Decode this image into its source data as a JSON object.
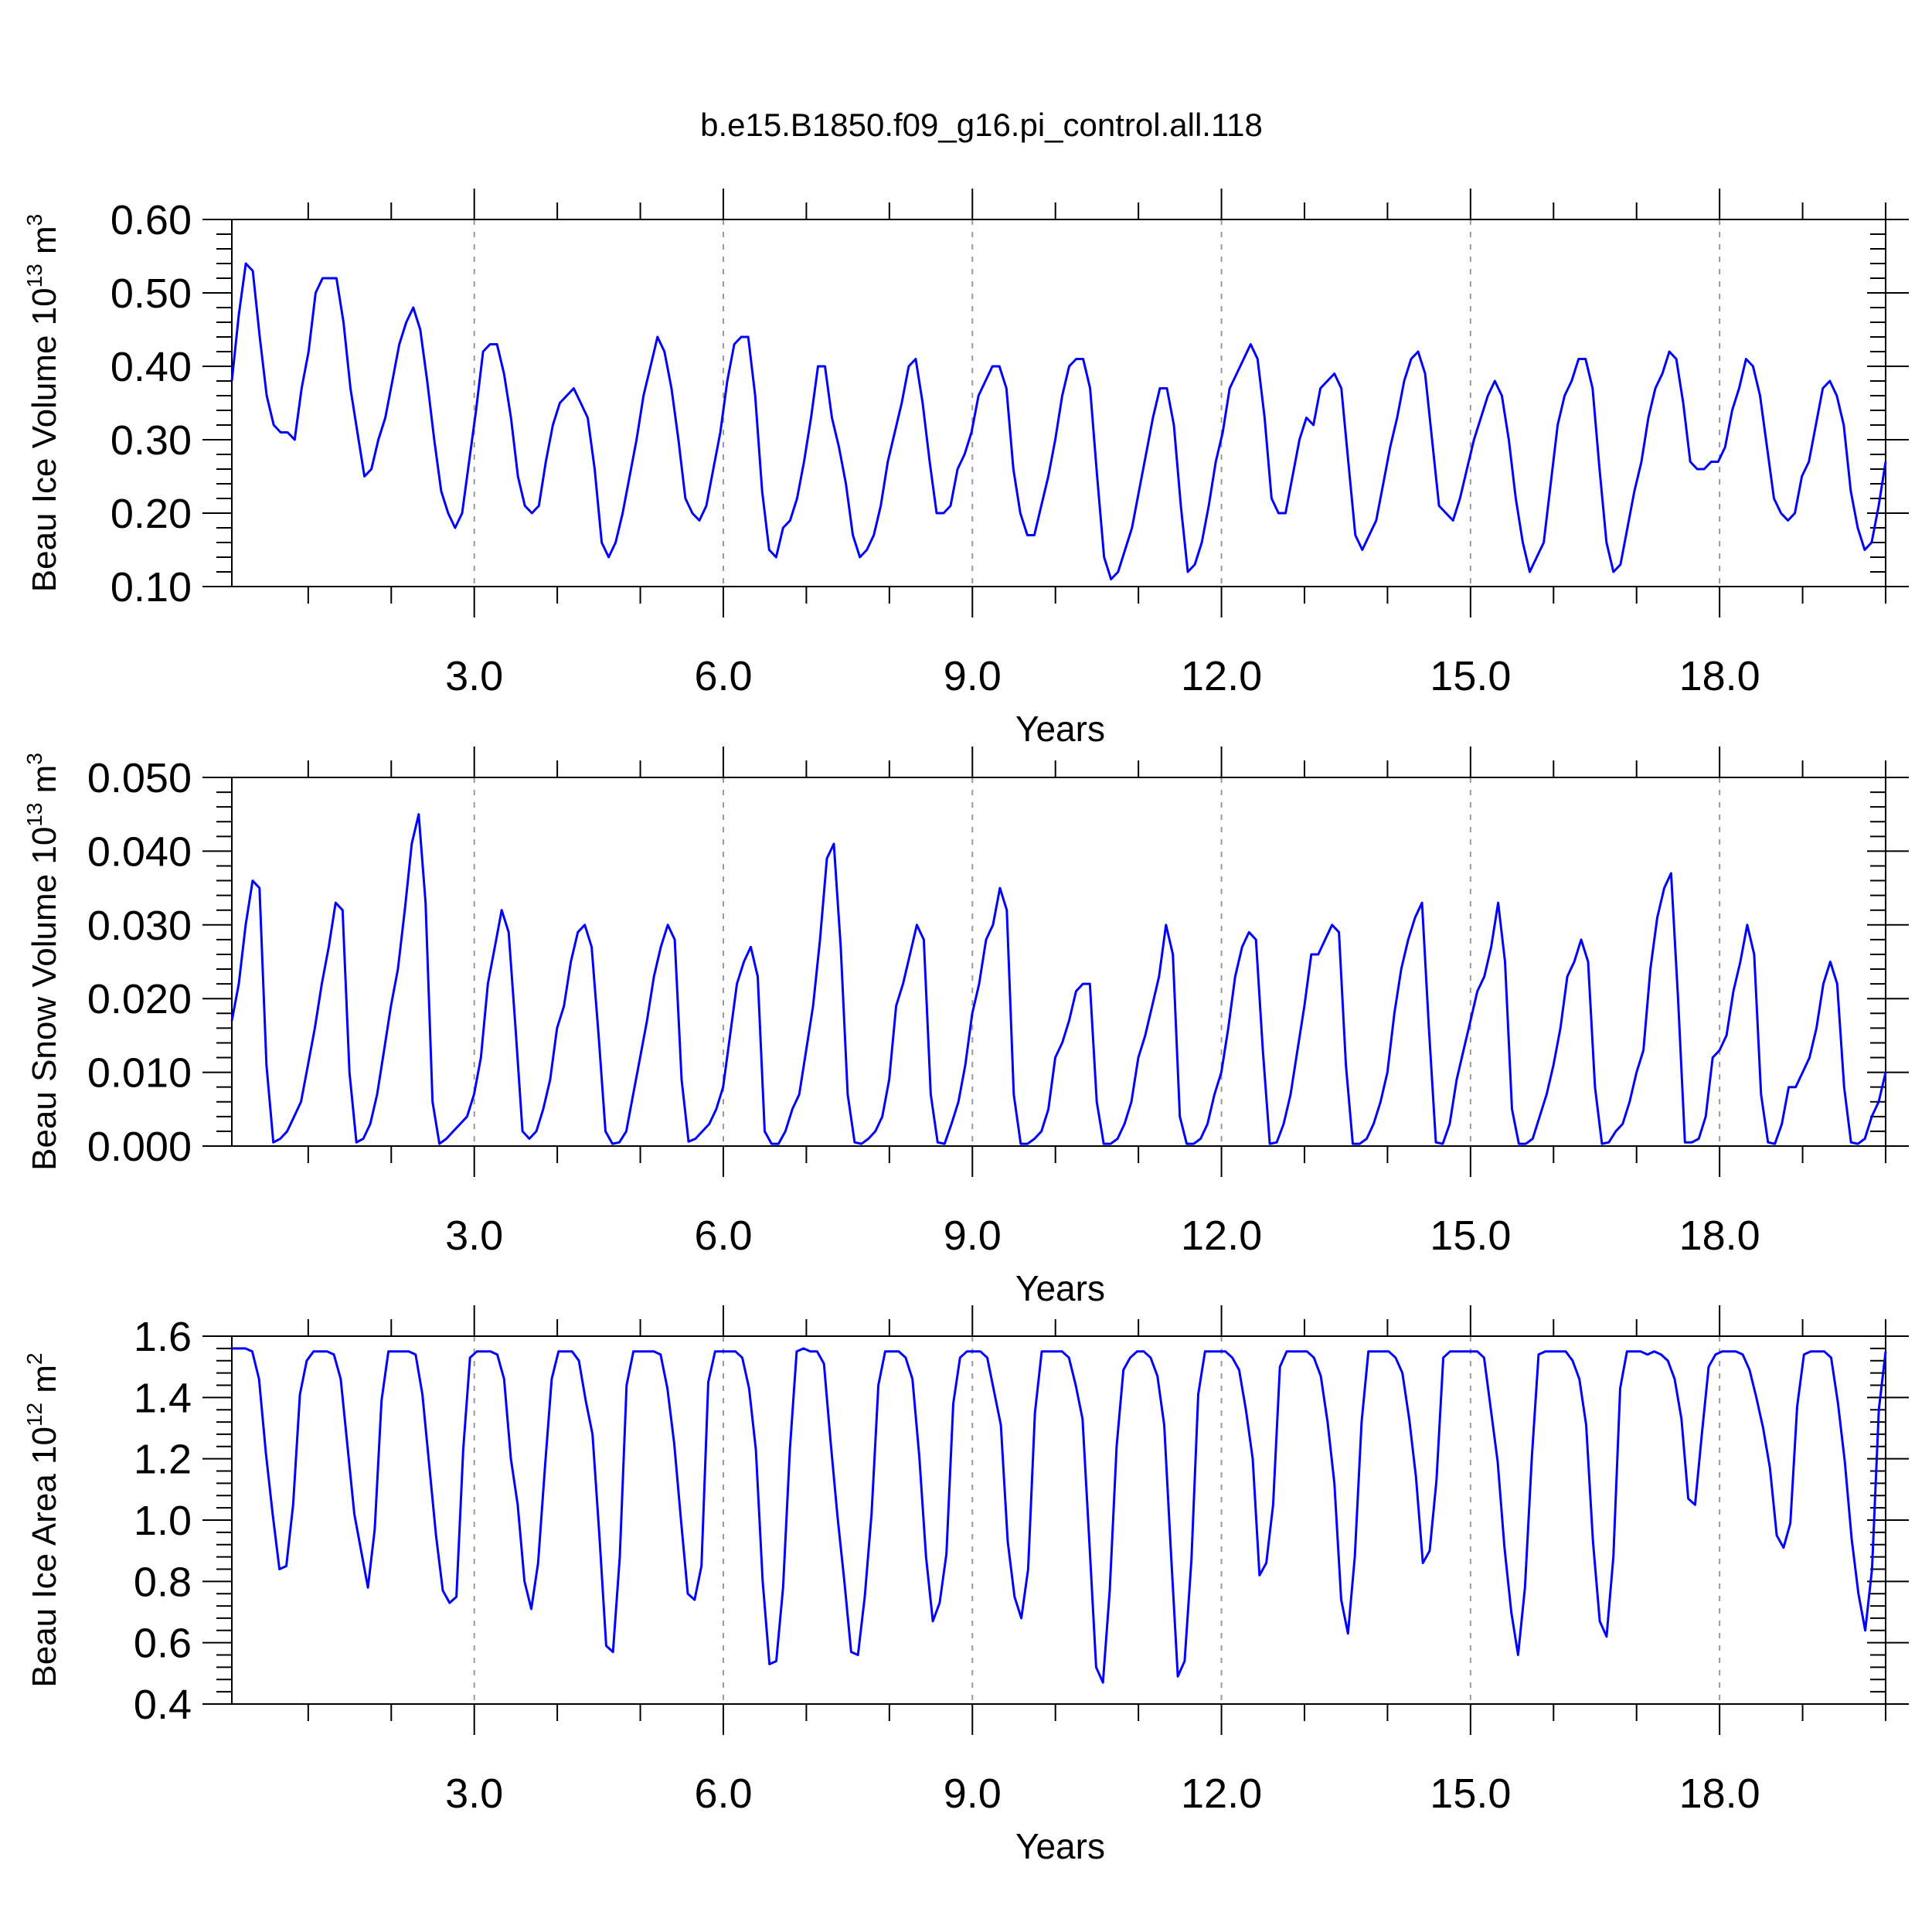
{
  "title": "b.e15.B1850.f09_g16.pi_control.all.118",
  "colors": {
    "line": "#0000ff",
    "axis": "#000000",
    "grid": "#9a9a9a"
  },
  "chart_data": [
    {
      "type": "line",
      "xlabel": "Years",
      "ylabel": {
        "text": "Beau Ice Volume 10",
        "exp": "13",
        "unit": " m",
        "unit_exp": "3"
      },
      "xlim": [
        0.08,
        20.0
      ],
      "ylim": [
        0.1,
        0.6
      ],
      "xticks": [
        "3.0",
        "6.0",
        "9.0",
        "12.0",
        "15.0",
        "18.0"
      ],
      "yticks": [
        "0.10",
        "0.20",
        "0.30",
        "0.40",
        "0.50",
        "0.60"
      ],
      "grid": "vertical dashed at labeled years",
      "series": [
        {
          "values": [
            0.38,
            0.47,
            0.54,
            0.53,
            0.44,
            0.36,
            0.32,
            0.31,
            0.31,
            0.3,
            0.37,
            0.42,
            0.5,
            0.52,
            0.52,
            0.52,
            0.46,
            0.37,
            0.31,
            0.25,
            0.26,
            0.3,
            0.33,
            0.38,
            0.43,
            0.46,
            0.48,
            0.45,
            0.38,
            0.3,
            0.23,
            0.2,
            0.18,
            0.2,
            0.27,
            0.34,
            0.42,
            0.43,
            0.43,
            0.39,
            0.33,
            0.25,
            0.21,
            0.2,
            0.21,
            0.27,
            0.32,
            0.35,
            0.36,
            0.37,
            0.35,
            0.33,
            0.26,
            0.16,
            0.14,
            0.16,
            0.2,
            0.25,
            0.3,
            0.36,
            0.4,
            0.44,
            0.42,
            0.37,
            0.3,
            0.22,
            0.2,
            0.19,
            0.21,
            0.26,
            0.31,
            0.38,
            0.43,
            0.44,
            0.44,
            0.36,
            0.23,
            0.15,
            0.14,
            0.18,
            0.19,
            0.22,
            0.27,
            0.33,
            0.4,
            0.4,
            0.33,
            0.29,
            0.24,
            0.17,
            0.14,
            0.15,
            0.17,
            0.21,
            0.27,
            0.31,
            0.35,
            0.4,
            0.41,
            0.35,
            0.27,
            0.2,
            0.2,
            0.21,
            0.26,
            0.28,
            0.31,
            0.36,
            0.38,
            0.4,
            0.4,
            0.37,
            0.26,
            0.2,
            0.17,
            0.17,
            0.21,
            0.25,
            0.3,
            0.36,
            0.4,
            0.41,
            0.41,
            0.37,
            0.25,
            0.14,
            0.11,
            0.12,
            0.15,
            0.18,
            0.23,
            0.28,
            0.33,
            0.37,
            0.37,
            0.32,
            0.21,
            0.12,
            0.13,
            0.16,
            0.21,
            0.27,
            0.31,
            0.37,
            0.39,
            0.41,
            0.43,
            0.41,
            0.33,
            0.22,
            0.2,
            0.2,
            0.25,
            0.3,
            0.33,
            0.32,
            0.37,
            0.38,
            0.39,
            0.37,
            0.27,
            0.17,
            0.15,
            0.17,
            0.19,
            0.24,
            0.29,
            0.33,
            0.38,
            0.41,
            0.42,
            0.39,
            0.3,
            0.21,
            0.2,
            0.19,
            0.22,
            0.26,
            0.3,
            0.33,
            0.36,
            0.38,
            0.36,
            0.3,
            0.22,
            0.16,
            0.12,
            0.14,
            0.16,
            0.24,
            0.32,
            0.36,
            0.38,
            0.41,
            0.41,
            0.37,
            0.26,
            0.16,
            0.12,
            0.13,
            0.18,
            0.23,
            0.27,
            0.33,
            0.37,
            0.39,
            0.42,
            0.41,
            0.35,
            0.27,
            0.26,
            0.26,
            0.27,
            0.27,
            0.29,
            0.34,
            0.37,
            0.41,
            0.4,
            0.36,
            0.29,
            0.22,
            0.2,
            0.19,
            0.2,
            0.25,
            0.27,
            0.32,
            0.37,
            0.38,
            0.36,
            0.32,
            0.23,
            0.18,
            0.15,
            0.16,
            0.21,
            0.27
          ]
        }
      ]
    },
    {
      "type": "line",
      "xlabel": "Years",
      "ylabel": {
        "text": "Beau Snow Volume 10",
        "exp": "13",
        "unit": " m",
        "unit_exp": "3"
      },
      "xlim": [
        0.08,
        20.0
      ],
      "ylim": [
        0.0,
        0.05
      ],
      "xticks": [
        "3.0",
        "6.0",
        "9.0",
        "12.0",
        "15.0",
        "18.0"
      ],
      "yticks": [
        "0.000",
        "0.010",
        "0.020",
        "0.030",
        "0.040",
        "0.050"
      ],
      "grid": "vertical dashed at labeled years",
      "series": [
        {
          "values": [
            0.017,
            0.022,
            0.03,
            0.036,
            0.035,
            0.011,
            0.0005,
            0.001,
            0.002,
            0.004,
            0.006,
            0.011,
            0.016,
            0.022,
            0.027,
            0.033,
            0.032,
            0.01,
            0.0005,
            0.001,
            0.003,
            0.007,
            0.013,
            0.019,
            0.024,
            0.032,
            0.041,
            0.045,
            0.033,
            0.006,
            0.0003,
            0.001,
            0.002,
            0.003,
            0.004,
            0.007,
            0.012,
            0.022,
            0.027,
            0.032,
            0.029,
            0.016,
            0.002,
            0.001,
            0.002,
            0.005,
            0.009,
            0.016,
            0.019,
            0.025,
            0.029,
            0.03,
            0.027,
            0.015,
            0.002,
            0.0003,
            0.0005,
            0.002,
            0.007,
            0.012,
            0.017,
            0.023,
            0.027,
            0.03,
            0.028,
            0.009,
            0.0006,
            0.001,
            0.002,
            0.003,
            0.005,
            0.008,
            0.015,
            0.022,
            0.025,
            0.027,
            0.023,
            0.002,
            0.0003,
            0.0003,
            0.002,
            0.005,
            0.007,
            0.013,
            0.019,
            0.028,
            0.039,
            0.041,
            0.027,
            0.007,
            0.0005,
            0.0003,
            0.001,
            0.002,
            0.004,
            0.009,
            0.019,
            0.022,
            0.026,
            0.03,
            0.028,
            0.007,
            0.0005,
            0.0003,
            0.003,
            0.006,
            0.011,
            0.018,
            0.022,
            0.028,
            0.03,
            0.035,
            0.032,
            0.007,
            0.0003,
            0.0003,
            0.001,
            0.002,
            0.005,
            0.012,
            0.014,
            0.017,
            0.021,
            0.022,
            0.022,
            0.006,
            0.0003,
            0.0003,
            0.001,
            0.003,
            0.006,
            0.012,
            0.015,
            0.019,
            0.023,
            0.03,
            0.026,
            0.004,
            0.0003,
            0.0003,
            0.001,
            0.003,
            0.007,
            0.01,
            0.016,
            0.023,
            0.027,
            0.029,
            0.028,
            0.013,
            0.0003,
            0.0005,
            0.003,
            0.007,
            0.013,
            0.019,
            0.026,
            0.026,
            0.028,
            0.03,
            0.029,
            0.011,
            0.0003,
            0.0003,
            0.001,
            0.003,
            0.006,
            0.01,
            0.018,
            0.024,
            0.028,
            0.031,
            0.033,
            0.016,
            0.0005,
            0.0003,
            0.003,
            0.009,
            0.013,
            0.017,
            0.021,
            0.023,
            0.027,
            0.033,
            0.025,
            0.005,
            0.0003,
            0.0003,
            0.001,
            0.004,
            0.007,
            0.011,
            0.016,
            0.023,
            0.025,
            0.028,
            0.025,
            0.008,
            0.0003,
            0.0005,
            0.002,
            0.003,
            0.006,
            0.01,
            0.013,
            0.024,
            0.031,
            0.035,
            0.037,
            0.02,
            0.0005,
            0.0005,
            0.001,
            0.004,
            0.012,
            0.013,
            0.015,
            0.021,
            0.025,
            0.03,
            0.026,
            0.007,
            0.0005,
            0.0003,
            0.003,
            0.008,
            0.008,
            0.01,
            0.012,
            0.016,
            0.022,
            0.025,
            0.022,
            0.008,
            0.0005,
            0.0003,
            0.001,
            0.004,
            0.006,
            0.01
          ]
        }
      ]
    },
    {
      "type": "line",
      "xlabel": "Years",
      "ylabel": {
        "text": "Beau Ice Area 10",
        "exp": "12",
        "unit": " m",
        "unit_exp": "2"
      },
      "xlim": [
        0.08,
        20.0
      ],
      "ylim": [
        0.4,
        1.6
      ],
      "xticks": [
        "3.0",
        "6.0",
        "9.0",
        "12.0",
        "15.0",
        "18.0"
      ],
      "yticks": [
        "0.4",
        "0.6",
        "0.8",
        "1.0",
        "1.2",
        "1.4",
        "1.6"
      ],
      "grid": "vertical dashed at labeled years",
      "series": [
        {
          "values": [
            1.56,
            1.56,
            1.56,
            1.55,
            1.46,
            1.22,
            1.02,
            0.84,
            0.85,
            1.05,
            1.41,
            1.52,
            1.55,
            1.55,
            1.55,
            1.54,
            1.46,
            1.24,
            1.02,
            0.9,
            0.78,
            0.97,
            1.39,
            1.55,
            1.55,
            1.55,
            1.55,
            1.54,
            1.41,
            1.18,
            0.95,
            0.77,
            0.73,
            0.75,
            1.23,
            1.53,
            1.55,
            1.55,
            1.55,
            1.54,
            1.46,
            1.2,
            1.05,
            0.8,
            0.71,
            0.86,
            1.17,
            1.46,
            1.55,
            1.55,
            1.55,
            1.52,
            1.39,
            1.28,
            0.95,
            0.59,
            0.57,
            0.88,
            1.44,
            1.55,
            1.55,
            1.55,
            1.55,
            1.54,
            1.43,
            1.25,
            1.0,
            0.76,
            0.74,
            0.85,
            1.45,
            1.55,
            1.55,
            1.55,
            1.55,
            1.53,
            1.43,
            1.23,
            0.8,
            0.53,
            0.54,
            0.78,
            1.23,
            1.55,
            1.56,
            1.55,
            1.55,
            1.51,
            1.25,
            1.01,
            0.8,
            0.57,
            0.56,
            0.75,
            1.02,
            1.44,
            1.55,
            1.55,
            1.55,
            1.53,
            1.46,
            1.21,
            0.88,
            0.67,
            0.73,
            0.89,
            1.38,
            1.53,
            1.55,
            1.55,
            1.55,
            1.53,
            1.42,
            1.31,
            0.93,
            0.75,
            0.68,
            0.84,
            1.35,
            1.55,
            1.55,
            1.55,
            1.55,
            1.53,
            1.44,
            1.33,
            0.93,
            0.52,
            0.47,
            0.77,
            1.24,
            1.49,
            1.53,
            1.55,
            1.55,
            1.53,
            1.47,
            1.31,
            0.89,
            0.49,
            0.54,
            0.87,
            1.41,
            1.55,
            1.55,
            1.55,
            1.55,
            1.53,
            1.49,
            1.36,
            1.2,
            0.82,
            0.86,
            1.05,
            1.5,
            1.55,
            1.55,
            1.55,
            1.55,
            1.53,
            1.47,
            1.32,
            1.12,
            0.74,
            0.63,
            0.88,
            1.32,
            1.55,
            1.55,
            1.55,
            1.55,
            1.53,
            1.48,
            1.33,
            1.14,
            0.86,
            0.9,
            1.13,
            1.53,
            1.55,
            1.55,
            1.55,
            1.55,
            1.55,
            1.53,
            1.36,
            1.19,
            0.91,
            0.7,
            0.56,
            0.78,
            1.2,
            1.54,
            1.55,
            1.55,
            1.55,
            1.55,
            1.52,
            1.46,
            1.31,
            0.93,
            0.67,
            0.62,
            0.88,
            1.43,
            1.55,
            1.55,
            1.55,
            1.54,
            1.55,
            1.54,
            1.52,
            1.46,
            1.33,
            1.07,
            1.05,
            1.28,
            1.5,
            1.54,
            1.55,
            1.55,
            1.55,
            1.54,
            1.49,
            1.4,
            1.3,
            1.17,
            0.95,
            0.91,
            0.99,
            1.37,
            1.54,
            1.55,
            1.55,
            1.55,
            1.53,
            1.38,
            1.19,
            0.94,
            0.76,
            0.64,
            0.84,
            1.36,
            1.55
          ]
        }
      ]
    }
  ]
}
